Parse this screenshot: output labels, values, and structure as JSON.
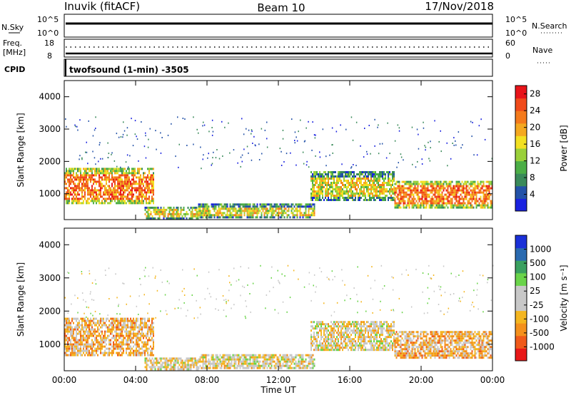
{
  "header": {
    "station": "Inuvik (fitACF)",
    "beam": "Beam 10",
    "date": "17/Nov/2018"
  },
  "top_panels": {
    "nsky_label": "N.Sky",
    "nsky_ticks": [
      "10^5",
      "10^0"
    ],
    "nsearch_label": "N.Search",
    "nsearch_ticks": [
      "10^5",
      "10^0"
    ],
    "freq_label": "Freq.",
    "freq_unit": "[MHz]",
    "freq_ticks": [
      "18",
      "8"
    ],
    "nave_label": "Nave",
    "nave_ticks": [
      "60",
      "0"
    ],
    "cpid_label": "CPID",
    "cpid_text": "twofsound (1-min) -3505"
  },
  "colors": {
    "power_scale": [
      "#1a22e0",
      "#2352a8",
      "#3a8a5a",
      "#4cae46",
      "#9ad03a",
      "#f2e022",
      "#f4a820",
      "#f47a1c",
      "#f04a1a",
      "#e8141a"
    ],
    "velocity_scale": [
      "#e81818",
      "#f05a1a",
      "#f4901c",
      "#f4b620",
      "#c8c8c8",
      "#c8c8c8",
      "#6ad44a",
      "#3aa060",
      "#2a6ab0",
      "#1a30d8"
    ]
  },
  "chart_data": [
    {
      "type": "heatmap",
      "panel": "power",
      "xlabel": "",
      "ylabel": "Slant Range [km]",
      "x_ticks": [
        "00:00",
        "04:00",
        "08:00",
        "12:00",
        "16:00",
        "20:00",
        "00:00"
      ],
      "y_ticks": [
        "1000",
        "2000",
        "3000",
        "4000"
      ],
      "xlim": [
        0,
        24
      ],
      "ylim": [
        200,
        4500
      ],
      "colorbar_label": "Power [dB]",
      "colorbar_ticks": [
        "4",
        "8",
        "12",
        "16",
        "20",
        "24",
        "28"
      ],
      "clim": [
        0,
        30
      ],
      "echo_regions": [
        {
          "t": [
            0.0,
            5.0
          ],
          "range": [
            700,
            1800
          ],
          "level": 24
        },
        {
          "t": [
            4.5,
            7.5
          ],
          "range": [
            250,
            600
          ],
          "level": 18
        },
        {
          "t": [
            7.5,
            14.0
          ],
          "range": [
            250,
            700
          ],
          "level": 16
        },
        {
          "t": [
            13.8,
            18.5
          ],
          "range": [
            800,
            1700
          ],
          "level": 18
        },
        {
          "t": [
            18.5,
            24.0
          ],
          "range": [
            600,
            1400
          ],
          "level": 22
        }
      ]
    },
    {
      "type": "heatmap",
      "panel": "velocity",
      "xlabel": "Time UT",
      "ylabel": "Slant Range [km]",
      "x_ticks": [
        "00:00",
        "04:00",
        "08:00",
        "12:00",
        "16:00",
        "20:00",
        "00:00"
      ],
      "y_ticks": [
        "1000",
        "2000",
        "3000",
        "4000"
      ],
      "xlim": [
        0,
        24
      ],
      "ylim": [
        200,
        4500
      ],
      "colorbar_label": "Velocity [m s⁻¹]",
      "colorbar_ticks": [
        "1000",
        "500",
        "100",
        "25",
        "-25",
        "-100",
        "-500",
        "-1000"
      ],
      "clim": [
        -1000,
        1000
      ],
      "echo_regions": [
        {
          "t": [
            0.0,
            5.0
          ],
          "range": [
            700,
            1800
          ],
          "velocity": -250
        },
        {
          "t": [
            4.5,
            7.5
          ],
          "range": [
            250,
            600
          ],
          "velocity": -200
        },
        {
          "t": [
            7.5,
            14.0
          ],
          "range": [
            250,
            700
          ],
          "velocity": -150
        },
        {
          "t": [
            13.8,
            18.5
          ],
          "range": [
            800,
            1700
          ],
          "velocity": -100
        },
        {
          "t": [
            18.5,
            24.0
          ],
          "range": [
            600,
            1400
          ],
          "velocity": -300
        }
      ]
    }
  ]
}
